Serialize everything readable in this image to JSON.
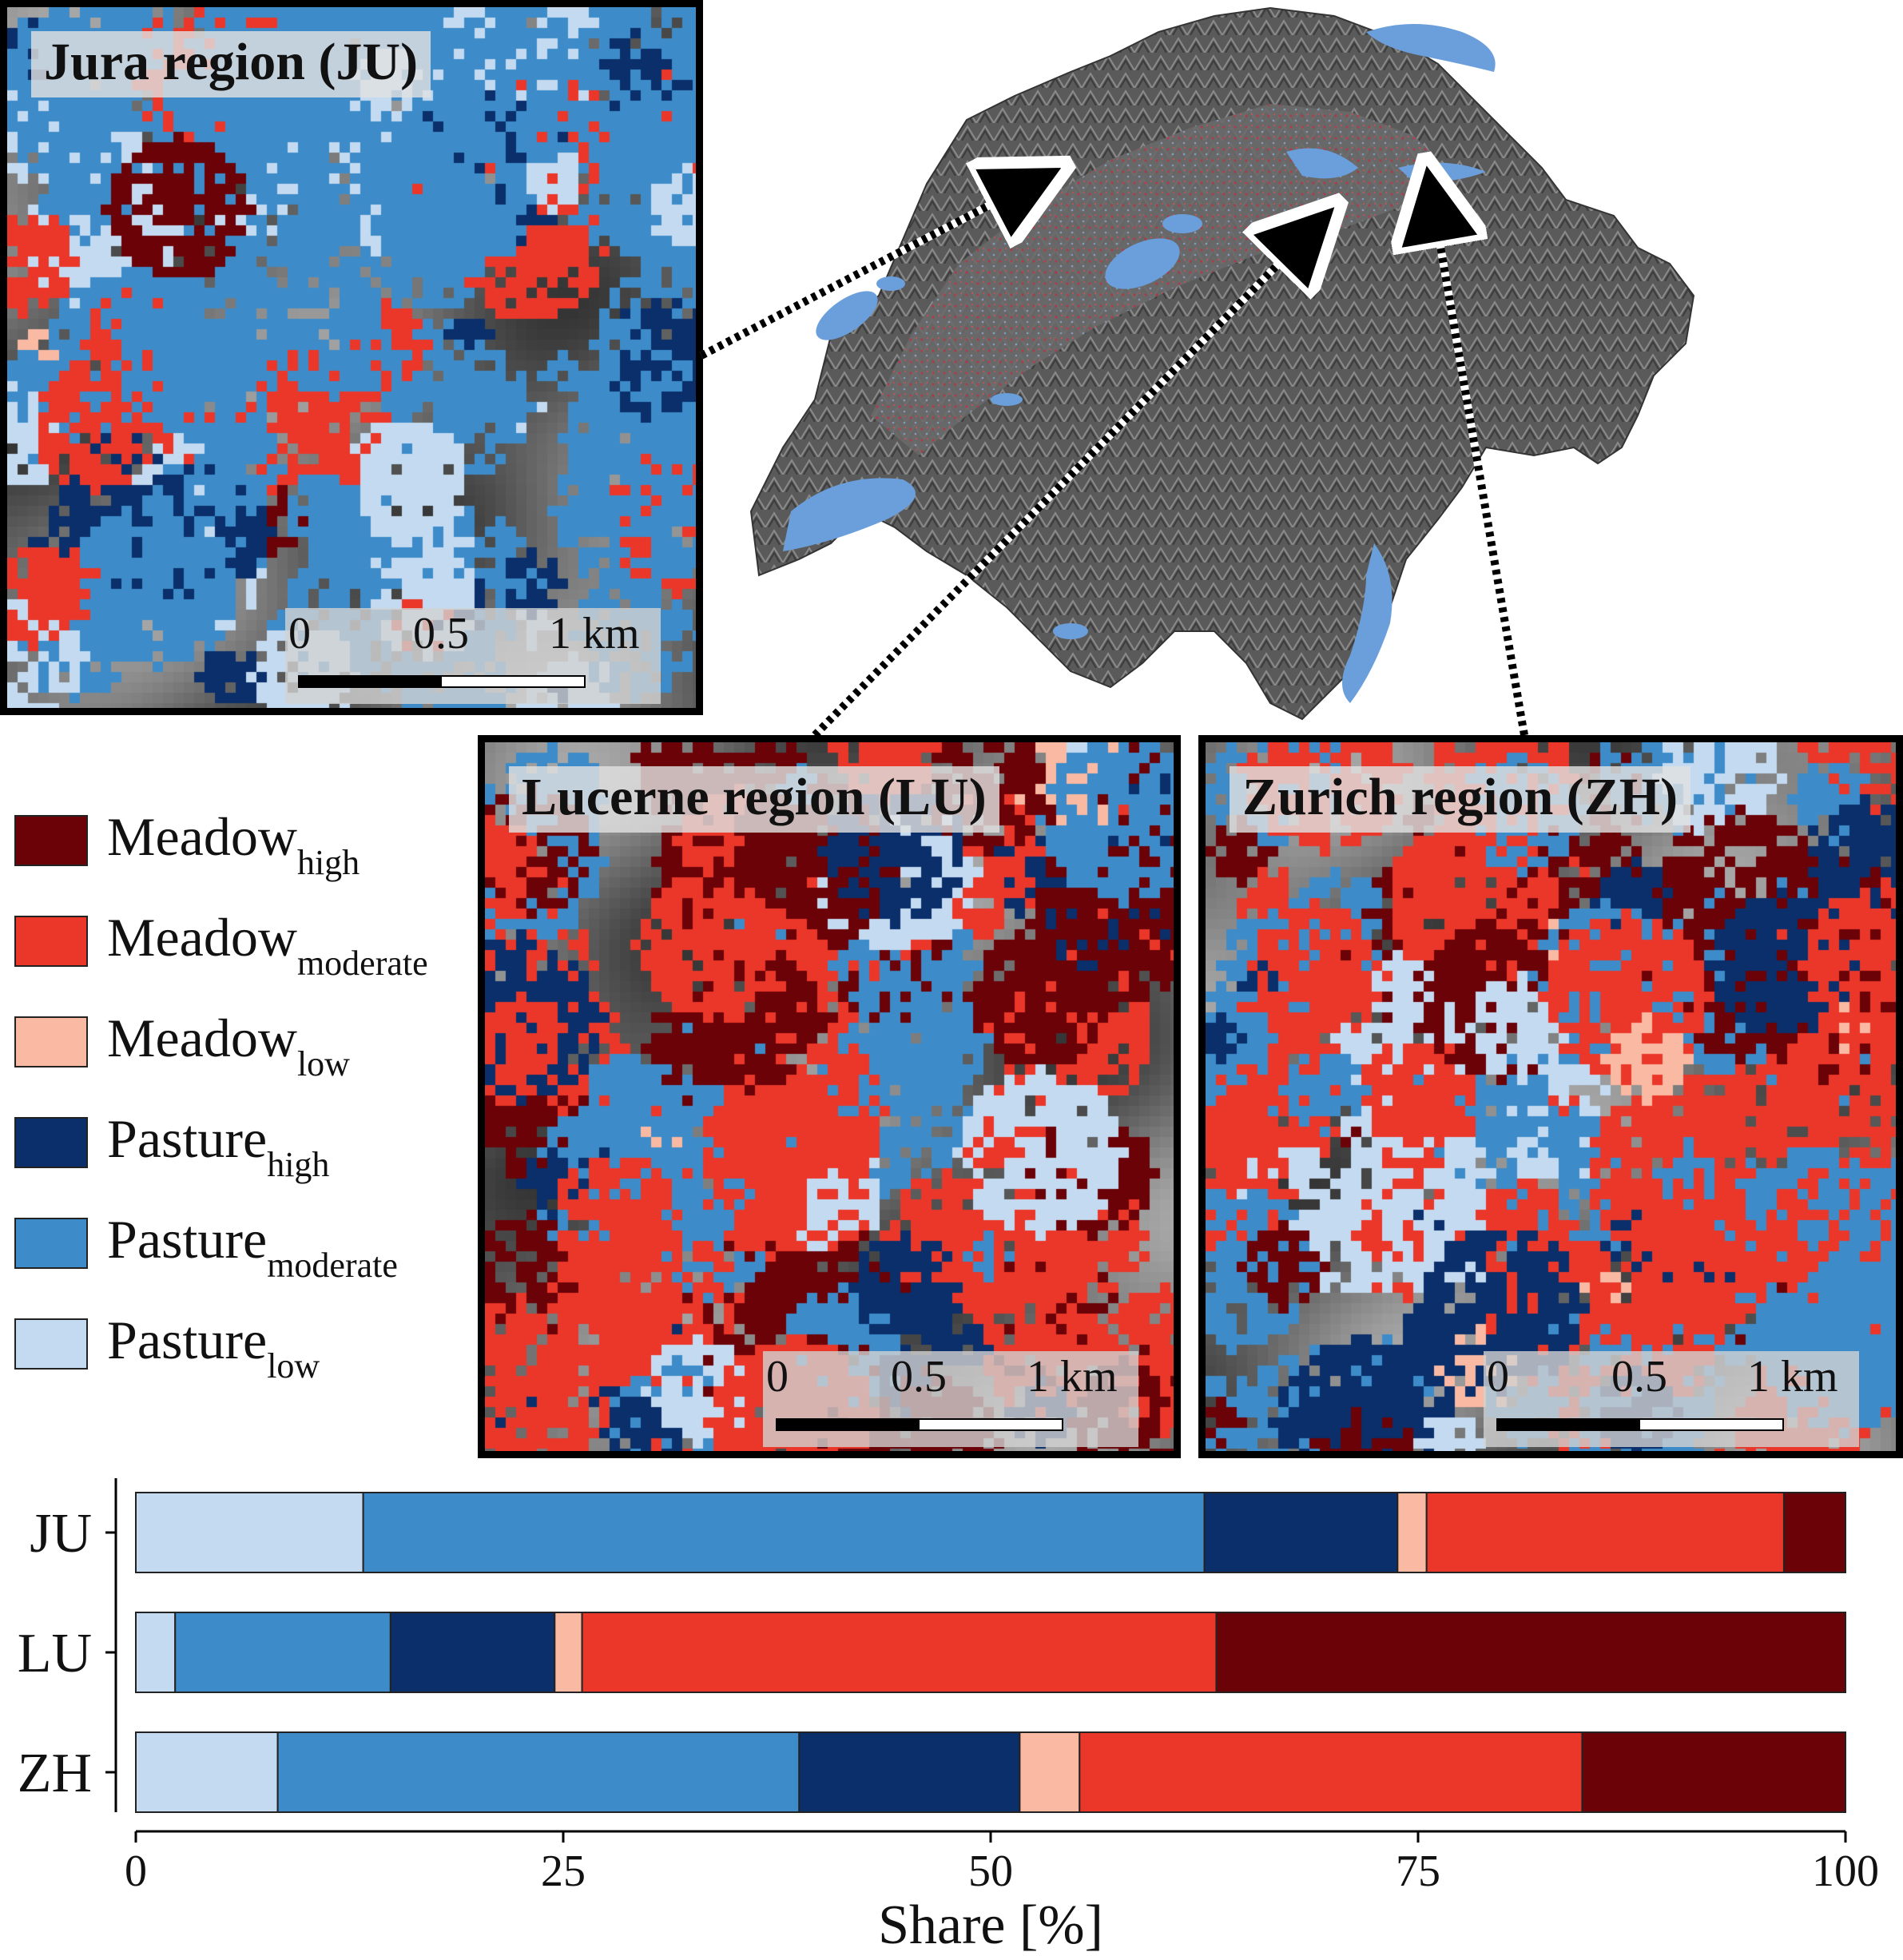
{
  "colors": {
    "meadow_high": "#6b0208",
    "meadow_moderate": "#ea3729",
    "meadow_low": "#fab9a2",
    "pasture_high": "#0a2f6b",
    "pasture_moderate": "#3d8cc9",
    "pasture_low": "#c3daf0",
    "lake": "#6a9fdc",
    "relief": "#5c5c5c"
  },
  "insets": {
    "ju": {
      "title": "Jura region (JU)"
    },
    "lu": {
      "title": "Lucerne region (LU)"
    },
    "zh": {
      "title": "Zurich region (ZH)"
    }
  },
  "scalebar": {
    "ticks": [
      "0",
      "0.5",
      "1 km"
    ]
  },
  "legend": [
    {
      "base": "Meadow",
      "sub": "high",
      "color_key": "meadow_high"
    },
    {
      "base": "Meadow",
      "sub": "moderate",
      "color_key": "meadow_moderate"
    },
    {
      "base": "Meadow",
      "sub": "low",
      "color_key": "meadow_low"
    },
    {
      "base": "Pasture",
      "sub": "high",
      "color_key": "pasture_high"
    },
    {
      "base": "Pasture",
      "sub": "moderate",
      "color_key": "pasture_moderate"
    },
    {
      "base": "Pasture",
      "sub": "low",
      "color_key": "pasture_low"
    }
  ],
  "chart_data": {
    "type": "bar",
    "orientation": "horizontal",
    "stacked": true,
    "categories": [
      "JU",
      "LU",
      "ZH"
    ],
    "series": [
      {
        "name": "Pasturelow",
        "color_key": "pasture_low",
        "values": [
          13.3,
          2.3,
          8.3
        ]
      },
      {
        "name": "Pasturemoderate",
        "color_key": "pasture_moderate",
        "values": [
          49.2,
          12.6,
          30.5
        ]
      },
      {
        "name": "Pasturehigh",
        "color_key": "pasture_high",
        "values": [
          11.3,
          9.6,
          12.9
        ]
      },
      {
        "name": "Meadowlow",
        "color_key": "meadow_low",
        "values": [
          1.7,
          1.6,
          3.5
        ]
      },
      {
        "name": "Meadowmoderate",
        "color_key": "meadow_moderate",
        "values": [
          20.9,
          37.1,
          29.4
        ]
      },
      {
        "name": "Meadowhigh",
        "color_key": "meadow_high",
        "values": [
          3.6,
          36.8,
          15.4
        ]
      }
    ],
    "xlim": [
      0,
      100
    ],
    "xticks": [
      "0",
      "25",
      "50",
      "75",
      "100"
    ],
    "xlabel": "Share [%]",
    "ylabel": ""
  }
}
